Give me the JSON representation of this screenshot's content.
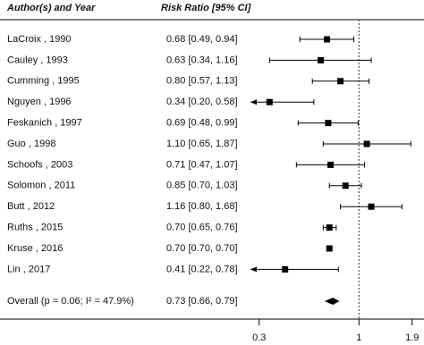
{
  "chart_data": {
    "type": "forest",
    "column_headers": [
      "Author(s) and Year",
      "Risk Ratio [95% CI]"
    ],
    "categories": [
      "LaCroix , 1990",
      "Cauley , 1993",
      "Cumming , 1995",
      "Nguyen , 1996",
      "Feskanich , 1997",
      "Guo , 1998",
      "Schoofs , 2003",
      "Solomon , 2011",
      "Butt , 2012",
      "Ruths , 2015",
      "Kruse , 2016",
      "Lin , 2017"
    ],
    "values": [
      0.68,
      0.63,
      0.8,
      0.34,
      0.69,
      1.1,
      0.71,
      0.85,
      1.16,
      0.7,
      0.7,
      0.41
    ],
    "lower": [
      0.49,
      0.34,
      0.57,
      0.2,
      0.48,
      0.65,
      0.47,
      0.7,
      0.8,
      0.65,
      0.7,
      0.22
    ],
    "upper": [
      0.94,
      1.16,
      1.13,
      0.58,
      0.99,
      1.87,
      1.07,
      1.03,
      1.68,
      0.76,
      0.7,
      0.78
    ],
    "value_labels": [
      "0.68 [0.49, 0.94]",
      "0.63 [0.34, 1.16]",
      "0.80 [0.57, 1.13]",
      "0.34 [0.20, 0.58]",
      "0.69 [0.48, 0.99]",
      "1.10 [0.65, 1.87]",
      "0.71 [0.47, 1.07]",
      "0.85 [0.70, 1.03]",
      "1.16 [0.80, 1.68]",
      "0.70 [0.65, 0.76]",
      "0.70 [0.70, 0.70]",
      "0.41 [0.22, 0.78]"
    ],
    "overall": {
      "label": "Overall  (p = 0.06; I² = 47.9%)",
      "value": 0.73,
      "lower": 0.66,
      "upper": 0.79,
      "value_label": "0.73 [0.66, 0.79]"
    },
    "ref_line": 1,
    "log_x": true,
    "xlim": [
      0.27,
      2.1
    ],
    "xticks": [
      0.3,
      1,
      1.9
    ],
    "color": "#000000"
  }
}
